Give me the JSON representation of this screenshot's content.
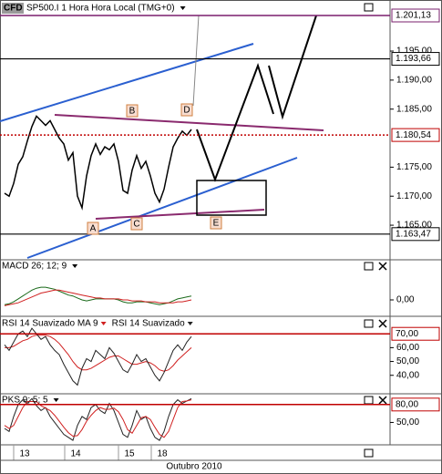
{
  "chart_data": [
    {
      "type": "line",
      "title": "SP500.I 1 Hora Hora Local (TMG+0)",
      "badge": "CFD",
      "x": [
        0,
        1,
        2,
        3,
        4,
        5,
        6,
        7,
        8,
        9,
        10,
        11,
        12,
        13,
        14,
        15,
        16,
        17,
        18,
        19,
        20,
        21,
        22,
        23,
        24,
        25,
        26,
        27,
        28,
        29,
        30,
        31,
        32,
        33,
        34,
        35,
        36,
        37,
        38,
        39,
        40,
        41
      ],
      "xlim": [
        -1,
        84.6
      ],
      "xticks": [
        {
          "value": 4.4,
          "label": "13"
        },
        {
          "value": 15.6,
          "label": "14"
        },
        {
          "value": 27.4,
          "label": "15"
        },
        {
          "value": 34.6,
          "label": "18"
        }
      ],
      "x_label": "Outubro 2010",
      "series": [
        {
          "color": "#000000",
          "values": [
            1.1705,
            1.17,
            1.1722,
            1.1755,
            1.1768,
            1.1795,
            1.182,
            1.1838,
            1.183,
            1.1822,
            1.183,
            1.1815,
            1.18,
            1.179,
            1.1762,
            1.1775,
            1.17,
            1.168,
            1.1735,
            1.177,
            1.179,
            1.1772,
            1.1785,
            1.178,
            1.179,
            1.176,
            1.171,
            1.1705,
            1.1745,
            1.177,
            1.1748,
            1.176,
            1.1735,
            1.1705,
            1.169,
            1.1712,
            1.175,
            1.1785,
            1.18,
            1.1812,
            1.1805,
            1.1815
          ]
        }
      ],
      "ylim": [
        1.1592,
        1.2038
      ],
      "yticks": [
        {
          "value": 1.195,
          "label": "1.195,00"
        },
        {
          "value": 1.19,
          "label": "1.190,00"
        },
        {
          "value": 1.185,
          "label": "1.185,00"
        },
        {
          "value": 1.175,
          "label": "1.175,00"
        },
        {
          "value": 1.17,
          "label": "1.170,00"
        },
        {
          "value": 1.165,
          "label": "1.165,00"
        }
      ],
      "hlines": [
        {
          "value": 1.20113,
          "label": "1.201,13",
          "color": "#7a1f6e"
        },
        {
          "value": 1.19366,
          "label": "1.193,66",
          "color": "#000000"
        },
        {
          "value": 1.18054,
          "label": "1.180,54",
          "color": "#c00000"
        },
        {
          "value": 1.16347,
          "label": "1.163,47",
          "color": "#000000"
        }
      ],
      "annotations": [
        "A",
        "B",
        "C",
        "D",
        "E"
      ]
    },
    {
      "type": "line",
      "title": "MACD 26; 12; 9",
      "title_color": "#1a7a1a",
      "x": [
        0,
        1,
        2,
        3,
        4,
        5,
        6,
        7,
        8,
        9,
        10,
        11,
        12,
        13,
        14,
        15,
        16,
        17,
        18,
        19,
        20,
        21,
        22,
        23,
        24,
        25,
        26,
        27,
        28,
        29,
        30,
        31,
        32,
        33,
        34,
        35,
        36,
        37,
        38,
        39,
        40,
        41
      ],
      "series": [
        {
          "color": "#1a6a1a",
          "values": [
            -0.0005,
            -0.0004,
            -0.0002,
            0.0001,
            0.0004,
            0.0007,
            0.001,
            0.0012,
            0.0013,
            0.0013,
            0.0012,
            0.0011,
            0.0009,
            0.0007,
            0.0005,
            0.0004,
            0.0002,
            0.0,
            -0.0001,
            0.0,
            0.0001,
            0.0001,
            0.0001,
            0.0001,
            0.0001,
            0.0,
            -0.0002,
            -0.0003,
            -0.0003,
            -0.0002,
            -0.0002,
            -0.0002,
            -0.0003,
            -0.0004,
            -0.0005,
            -0.0004,
            -0.0003,
            -0.0001,
            0.0001,
            0.0002,
            0.0003,
            0.0004
          ]
        },
        {
          "color": "#d02020",
          "values": [
            -0.0006,
            -0.0005,
            -0.0004,
            -0.0003,
            -0.0001,
            0.0001,
            0.0003,
            0.0005,
            0.0007,
            0.0008,
            0.0009,
            0.001,
            0.001,
            0.0009,
            0.0008,
            0.0007,
            0.0006,
            0.0005,
            0.0004,
            0.0003,
            0.0002,
            0.0002,
            0.0001,
            0.0001,
            0.0001,
            0.0001,
            0.0,
            0.0,
            -0.0001,
            -0.0001,
            -0.0001,
            -0.0002,
            -0.0002,
            -0.0002,
            -0.0003,
            -0.0003,
            -0.0003,
            -0.0003,
            -0.0002,
            -0.0002,
            -0.0001,
            0.0
          ]
        }
      ],
      "ylim": [
        -0.0015,
        0.003
      ],
      "yticks": [
        {
          "value": 0,
          "label": "0,00"
        }
      ]
    },
    {
      "type": "line",
      "x": [
        0,
        1,
        2,
        3,
        4,
        5,
        6,
        7,
        8,
        9,
        10,
        11,
        12,
        13,
        14,
        15,
        16,
        17,
        18,
        19,
        20,
        21,
        22,
        23,
        24,
        25,
        26,
        27,
        28,
        29,
        30,
        31,
        32,
        33,
        34,
        35,
        36,
        37,
        38,
        39,
        40,
        41
      ],
      "series": [
        {
          "name": "RSI 14 Suavizado MA 9",
          "color": "#d02020",
          "values": [
            60,
            60,
            61,
            63,
            65,
            66,
            68,
            69,
            69,
            69,
            68,
            66,
            63,
            59,
            55,
            50,
            46,
            44,
            44,
            45,
            47,
            49,
            51,
            53,
            54,
            54,
            52,
            50,
            48,
            48,
            49,
            50,
            49,
            47,
            44,
            43,
            44,
            47,
            51,
            54,
            57,
            60
          ]
        },
        {
          "name": "RSI 14 Suavizado",
          "color": "#222222",
          "values": [
            62,
            58,
            64,
            70,
            72,
            68,
            74,
            70,
            66,
            68,
            62,
            58,
            55,
            48,
            42,
            36,
            33,
            45,
            52,
            50,
            58,
            55,
            52,
            60,
            56,
            50,
            44,
            42,
            48,
            55,
            50,
            52,
            46,
            40,
            36,
            42,
            50,
            58,
            62,
            58,
            64,
            68
          ]
        }
      ],
      "ylim": [
        27.3,
        82
      ],
      "yticks": [
        {
          "value": 60,
          "label": "60,00"
        },
        {
          "value": 50,
          "label": "50,00"
        },
        {
          "value": 40,
          "label": "40,00"
        }
      ],
      "hlines": [
        {
          "value": 70,
          "label": "70,00",
          "color": "#c00000"
        }
      ]
    },
    {
      "type": "line",
      "title": "PKS 9; 5; 5",
      "title_color": "#000000",
      "x": [
        0,
        1,
        2,
        3,
        4,
        5,
        6,
        7,
        8,
        9,
        10,
        11,
        12,
        13,
        14,
        15,
        16,
        17,
        18,
        19,
        20,
        21,
        22,
        23,
        24,
        25,
        26,
        27,
        28,
        29,
        30,
        31,
        32,
        33,
        34,
        35,
        36,
        37,
        38,
        39,
        40,
        41
      ],
      "series": [
        {
          "color": "#222222",
          "values": [
            40,
            35,
            60,
            80,
            88,
            82,
            90,
            78,
            70,
            75,
            60,
            50,
            40,
            30,
            25,
            20,
            45,
            60,
            55,
            75,
            80,
            70,
            65,
            82,
            70,
            50,
            30,
            25,
            45,
            70,
            55,
            60,
            40,
            25,
            20,
            35,
            60,
            80,
            88,
            82,
            86,
            90
          ]
        },
        {
          "color": "#d02020",
          "values": [
            45,
            40,
            45,
            60,
            75,
            85,
            85,
            85,
            78,
            74,
            70,
            62,
            52,
            42,
            33,
            27,
            28,
            38,
            52,
            62,
            70,
            75,
            72,
            72,
            74,
            68,
            55,
            38,
            32,
            45,
            58,
            60,
            55,
            42,
            30,
            25,
            35,
            55,
            75,
            85,
            86,
            88
          ]
        }
      ],
      "ylim": [
        12.5,
        96.5
      ],
      "yticks": [
        {
          "value": 50,
          "label": "50,00"
        }
      ],
      "hlines": [
        {
          "value": 80,
          "label": "80,00",
          "color": "#c00000"
        }
      ]
    }
  ]
}
